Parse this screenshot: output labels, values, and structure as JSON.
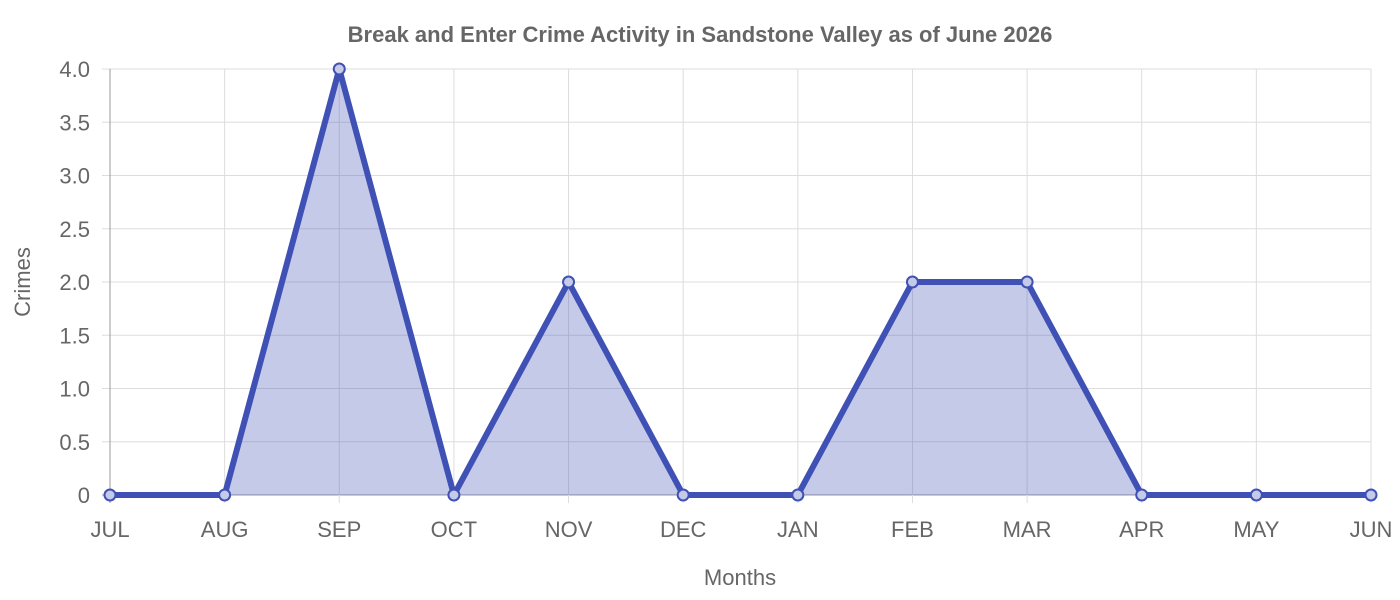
{
  "chart_data": {
    "type": "area",
    "title": "Break and Enter Crime Activity in Sandstone Valley as of June 2026",
    "xlabel": "Months",
    "ylabel": "Crimes",
    "categories": [
      "JUL",
      "AUG",
      "SEP",
      "OCT",
      "NOV",
      "DEC",
      "JAN",
      "FEB",
      "MAR",
      "APR",
      "MAY",
      "JUN"
    ],
    "values": [
      0,
      0,
      4,
      0,
      2,
      0,
      0,
      2,
      2,
      0,
      0,
      0
    ],
    "ylim": [
      0,
      4
    ],
    "yticks": [
      "0",
      "0.5",
      "1.0",
      "1.5",
      "2.0",
      "2.5",
      "3.0",
      "3.5",
      "4.0"
    ],
    "grid": true,
    "legend": "none",
    "colors": {
      "line": "#3f51b5",
      "fill": "rgba(63, 81, 181, 0.3)",
      "point": "#3f51b5",
      "point_fill": "rgba(63, 81, 181, 0.3)"
    }
  }
}
